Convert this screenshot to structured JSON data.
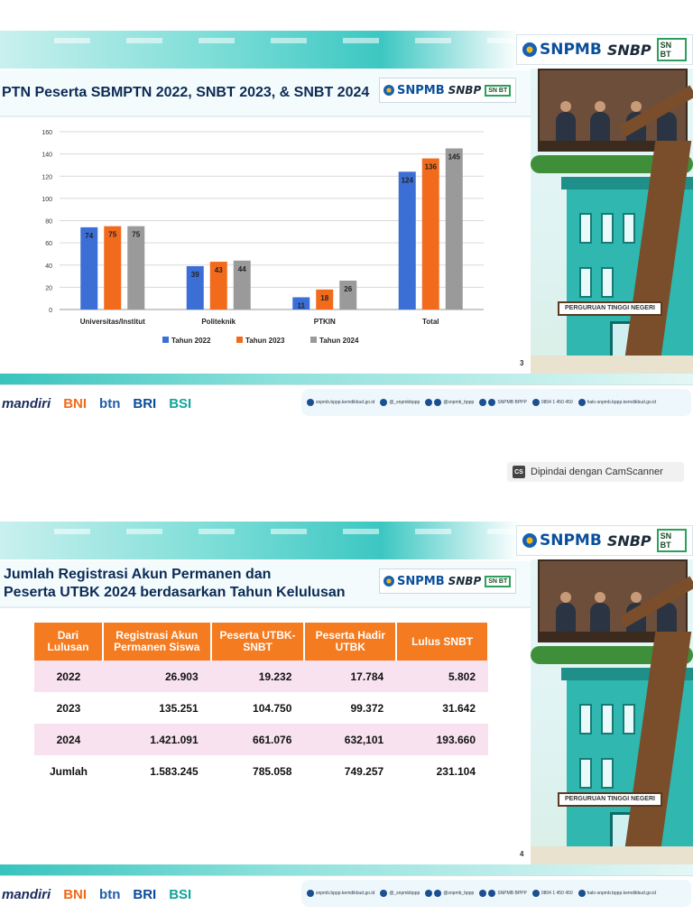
{
  "brand": {
    "snpmb": "SNPMB",
    "snbp": "SNBP",
    "snbt": "SN BT"
  },
  "slide1": {
    "title": "PTN Peserta SBMPTN 2022, SNBT 2023, & SNBT 2024",
    "page_number": "3"
  },
  "slide2": {
    "title_line1": "Jumlah Registrasi Akun Permanen dan",
    "title_line2": "Peserta UTBK 2024 berdasarkan Tahun Kelulusan",
    "page_number": "4",
    "table": {
      "headers": [
        "Dari Lulusan",
        "Registrasi Akun Permanen Siswa",
        "Peserta UTBK-SNBT",
        "Peserta Hadir UTBK",
        "Lulus SNBT"
      ],
      "rows": [
        [
          "2022",
          "26.903",
          "19.232",
          "17.784",
          "5.802"
        ],
        [
          "2023",
          "135.251",
          "104.750",
          "99.372",
          "31.642"
        ],
        [
          "2024",
          "1.421.091",
          "661.076",
          "632,101",
          "193.660"
        ],
        [
          "Jumlah",
          "1.583.245",
          "785.058",
          "749.257",
          "231.104"
        ]
      ]
    }
  },
  "building_sign": "PERGURUAN TINGGI NEGERI",
  "sponsors": [
    "mandiri",
    "BNI",
    "btn",
    "BRI",
    "BSI"
  ],
  "contacts": [
    "snpmb.bppp.kemdikbud.go.id",
    "@_snpmbbppp",
    "@snpmb_bppp",
    "SNPMB BPPP",
    "0804 1 450 450",
    "halo-snpmb.bppp.kemdikbud.go.id"
  ],
  "watermark": {
    "logo": "CS",
    "text": "Dipindai dengan CamScanner"
  },
  "chart_data": {
    "type": "bar",
    "categories": [
      "Universitas/Institut",
      "Politeknik",
      "PTKIN",
      "Total"
    ],
    "series": [
      {
        "name": "Tahun 2022",
        "color": "#3b6fd6",
        "values": [
          74,
          39,
          11,
          124
        ]
      },
      {
        "name": "Tahun 2023",
        "color": "#f26b1d",
        "values": [
          75,
          43,
          18,
          136
        ]
      },
      {
        "name": "Tahun 2024",
        "color": "#9a9a9a",
        "values": [
          75,
          44,
          26,
          145
        ]
      }
    ],
    "ylim": [
      0,
      160
    ],
    "yticks": [
      0,
      20,
      40,
      60,
      80,
      100,
      120,
      140,
      160
    ],
    "grid": true,
    "legend": "bottom"
  }
}
